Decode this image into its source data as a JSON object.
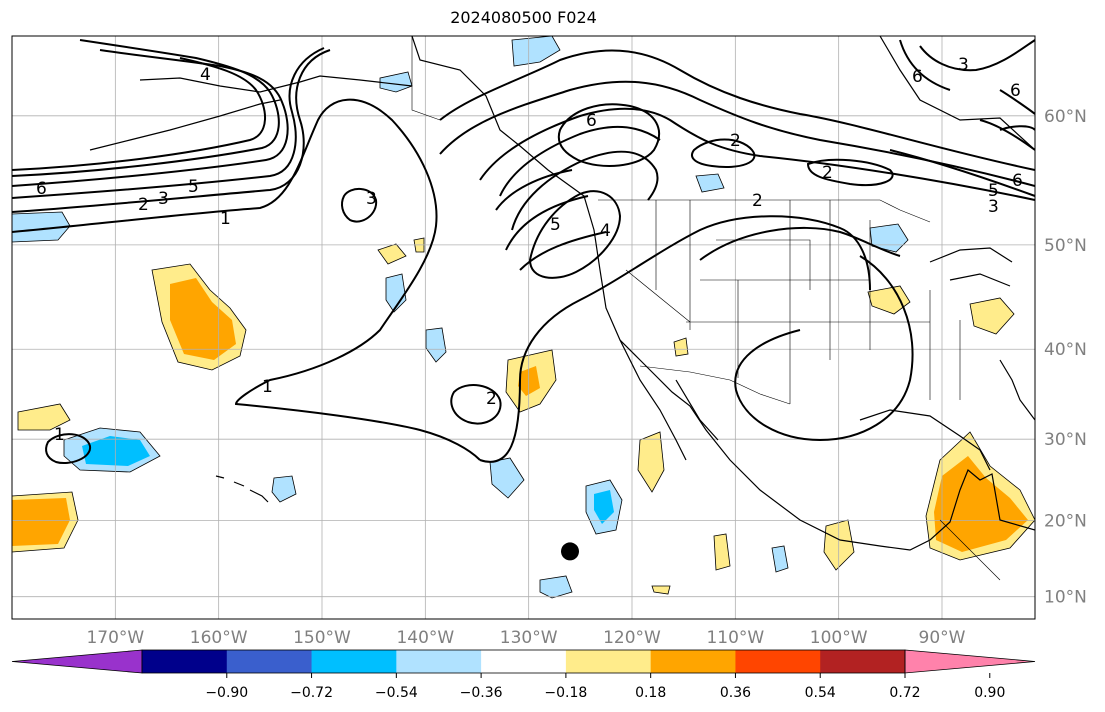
{
  "title": "2024080500 F024",
  "map": {
    "lon_range": [
      -180,
      -81
    ],
    "lat_range": [
      7,
      65
    ],
    "lon_labels": [
      "170°W",
      "160°W",
      "150°W",
      "140°W",
      "130°W",
      "120°W",
      "110°W",
      "100°W",
      "90°W"
    ],
    "lat_labels": [
      "60°N",
      "50°N",
      "40°N",
      "30°N",
      "20°N",
      "10°N"
    ],
    "contour_labels": [
      "4",
      "6",
      "2",
      "3",
      "5",
      "1",
      "3",
      "6",
      "2",
      "2",
      "2",
      "5",
      "4",
      "1",
      "2",
      "1",
      "6",
      "3",
      "6",
      "5",
      "3",
      "6"
    ],
    "marker": {
      "name": "storm-position-dot",
      "lon": -126,
      "lat": 16
    }
  },
  "colorbar": {
    "colors": [
      "#9932CC",
      "#00008B",
      "#3A5FCD",
      "#00BFFF",
      "#B0E2FF",
      "#FFFFFF",
      "#FFEC8B",
      "#FFA500",
      "#FF4500",
      "#B22222",
      "#FF82AB"
    ],
    "tick_labels": [
      "−0.90",
      "−0.72",
      "−0.54",
      "−0.36",
      "−0.18",
      "0.18",
      "0.36",
      "0.54",
      "0.72",
      "0.90"
    ]
  },
  "colors": {
    "light_blue": "#B0E2FF",
    "blue": "#00BFFF",
    "yellow": "#FFEC8B",
    "orange": "#FFA500"
  }
}
